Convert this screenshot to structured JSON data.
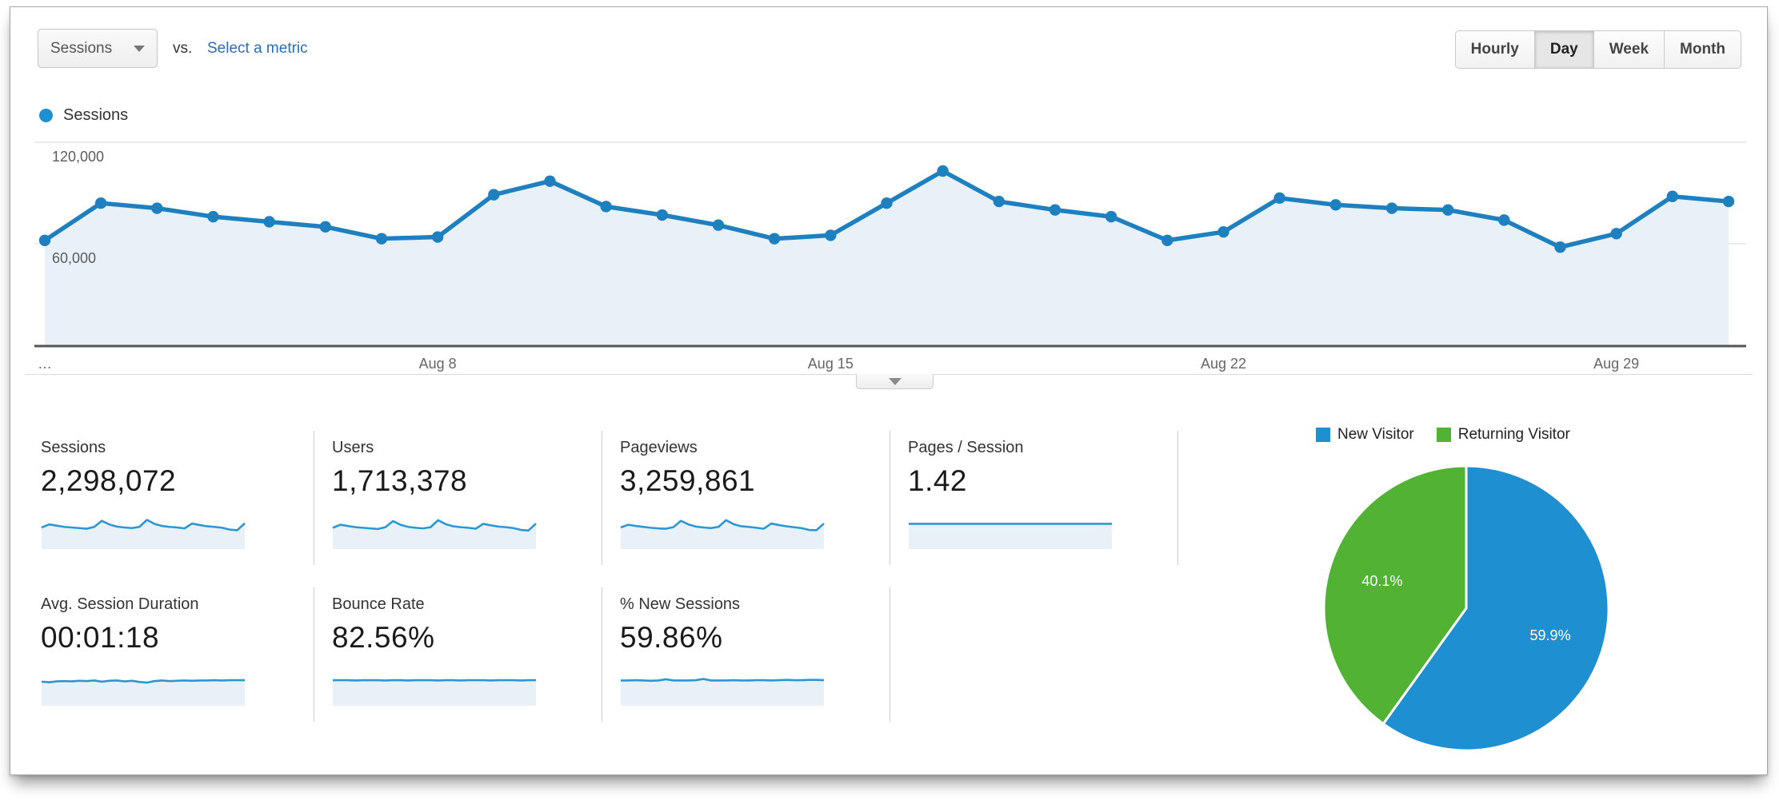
{
  "toolbar": {
    "metric_selector": {
      "label": "Sessions"
    },
    "vs_label": "vs.",
    "select_metric_label": "Select a metric",
    "granularity": {
      "options": [
        "Hourly",
        "Day",
        "Week",
        "Month"
      ],
      "active": "Day"
    }
  },
  "legend": {
    "label": "Sessions"
  },
  "colors": {
    "line_blue": "#1f80bf",
    "dot_blue": "#1f80bf",
    "area_fill": "#e9f1f8",
    "spark_line": "#2e96d0",
    "spark_fill": "#e9f1f8",
    "pie_blue": "#1e8fd0",
    "pie_green": "#52b233",
    "grid": "#ececec",
    "baseline": "#555555",
    "link_blue": "#2a6cb5"
  },
  "chart_data": [
    {
      "type": "area",
      "title": "Sessions by day",
      "legend_position": "top-left",
      "grid": true,
      "ylim": [
        0,
        127000
      ],
      "y_ticks": [
        {
          "value": 60000,
          "label": "60,000"
        },
        {
          "value": 120000,
          "label": "120,000"
        }
      ],
      "x_ticks": [
        {
          "index": 0,
          "label": "…"
        },
        {
          "index": 7,
          "label": "Aug 8"
        },
        {
          "index": 14,
          "label": "Aug 15"
        },
        {
          "index": 21,
          "label": "Aug 22"
        },
        {
          "index": 28,
          "label": "Aug 29"
        }
      ],
      "series": [
        {
          "name": "Sessions",
          "values": [
            62000,
            84000,
            81000,
            76000,
            73000,
            70000,
            63000,
            64000,
            89000,
            97000,
            82000,
            77000,
            71000,
            63000,
            65000,
            84000,
            103000,
            85000,
            80000,
            76000,
            62000,
            67000,
            87000,
            83000,
            81000,
            80000,
            74000,
            58000,
            66000,
            88000,
            85000
          ]
        }
      ]
    },
    {
      "type": "pie",
      "slices": [
        {
          "label": "New Visitor",
          "value": 59.9,
          "display": "59.9%",
          "color": "#1e8fd0"
        },
        {
          "label": "Returning Visitor",
          "value": 40.1,
          "display": "40.1%",
          "color": "#52b233"
        }
      ]
    }
  ],
  "metrics": {
    "row1": [
      {
        "label": "Sessions",
        "value": "2,298,072",
        "spark": [
          0.5,
          0.6,
          0.56,
          0.52,
          0.5,
          0.48,
          0.46,
          0.52,
          0.72,
          0.6,
          0.53,
          0.5,
          0.48,
          0.52,
          0.75,
          0.62,
          0.55,
          0.52,
          0.5,
          0.47,
          0.63,
          0.58,
          0.54,
          0.52,
          0.49,
          0.43,
          0.41,
          0.64
        ]
      },
      {
        "label": "Users",
        "value": "1,713,378",
        "spark": [
          0.49,
          0.59,
          0.55,
          0.51,
          0.49,
          0.47,
          0.45,
          0.51,
          0.71,
          0.59,
          0.52,
          0.49,
          0.47,
          0.51,
          0.74,
          0.61,
          0.54,
          0.51,
          0.49,
          0.46,
          0.62,
          0.57,
          0.53,
          0.51,
          0.48,
          0.42,
          0.4,
          0.63
        ]
      },
      {
        "label": "Pageviews",
        "value": "3,259,861",
        "spark": [
          0.5,
          0.59,
          0.55,
          0.52,
          0.49,
          0.47,
          0.46,
          0.51,
          0.72,
          0.6,
          0.53,
          0.5,
          0.48,
          0.52,
          0.74,
          0.61,
          0.54,
          0.52,
          0.49,
          0.46,
          0.63,
          0.58,
          0.54,
          0.51,
          0.48,
          0.42,
          0.41,
          0.63
        ]
      },
      {
        "label": "Pages / Session",
        "value": "1.42",
        "spark": [
          0.62,
          0.62,
          0.62,
          0.62,
          0.62,
          0.62,
          0.62,
          0.62,
          0.62,
          0.62,
          0.62,
          0.62,
          0.62,
          0.62,
          0.62,
          0.62,
          0.62,
          0.62,
          0.62,
          0.62,
          0.62,
          0.62,
          0.62,
          0.62,
          0.62,
          0.62,
          0.62,
          0.62
        ]
      }
    ],
    "row2": [
      {
        "label": "Avg. Session Duration",
        "value": "00:01:18",
        "spark": [
          0.58,
          0.56,
          0.59,
          0.6,
          0.59,
          0.61,
          0.6,
          0.62,
          0.58,
          0.61,
          0.62,
          0.59,
          0.61,
          0.57,
          0.55,
          0.6,
          0.62,
          0.6,
          0.61,
          0.62,
          0.61,
          0.62,
          0.62,
          0.63,
          0.62,
          0.63,
          0.63,
          0.63
        ]
      },
      {
        "label": "Bounce Rate",
        "value": "82.56%",
        "spark": [
          0.63,
          0.63,
          0.63,
          0.62,
          0.63,
          0.63,
          0.63,
          0.62,
          0.63,
          0.63,
          0.62,
          0.63,
          0.63,
          0.63,
          0.62,
          0.63,
          0.63,
          0.62,
          0.63,
          0.63,
          0.63,
          0.62,
          0.63,
          0.63,
          0.63,
          0.62,
          0.63,
          0.63
        ]
      },
      {
        "label": "% New Sessions",
        "value": "59.86%",
        "spark": [
          0.62,
          0.62,
          0.63,
          0.62,
          0.61,
          0.62,
          0.66,
          0.62,
          0.62,
          0.62,
          0.63,
          0.67,
          0.62,
          0.62,
          0.62,
          0.63,
          0.62,
          0.62,
          0.63,
          0.63,
          0.62,
          0.63,
          0.64,
          0.63,
          0.63,
          0.64,
          0.64,
          0.63
        ]
      }
    ]
  },
  "collapse_button": {
    "icon": "chevron-down"
  }
}
